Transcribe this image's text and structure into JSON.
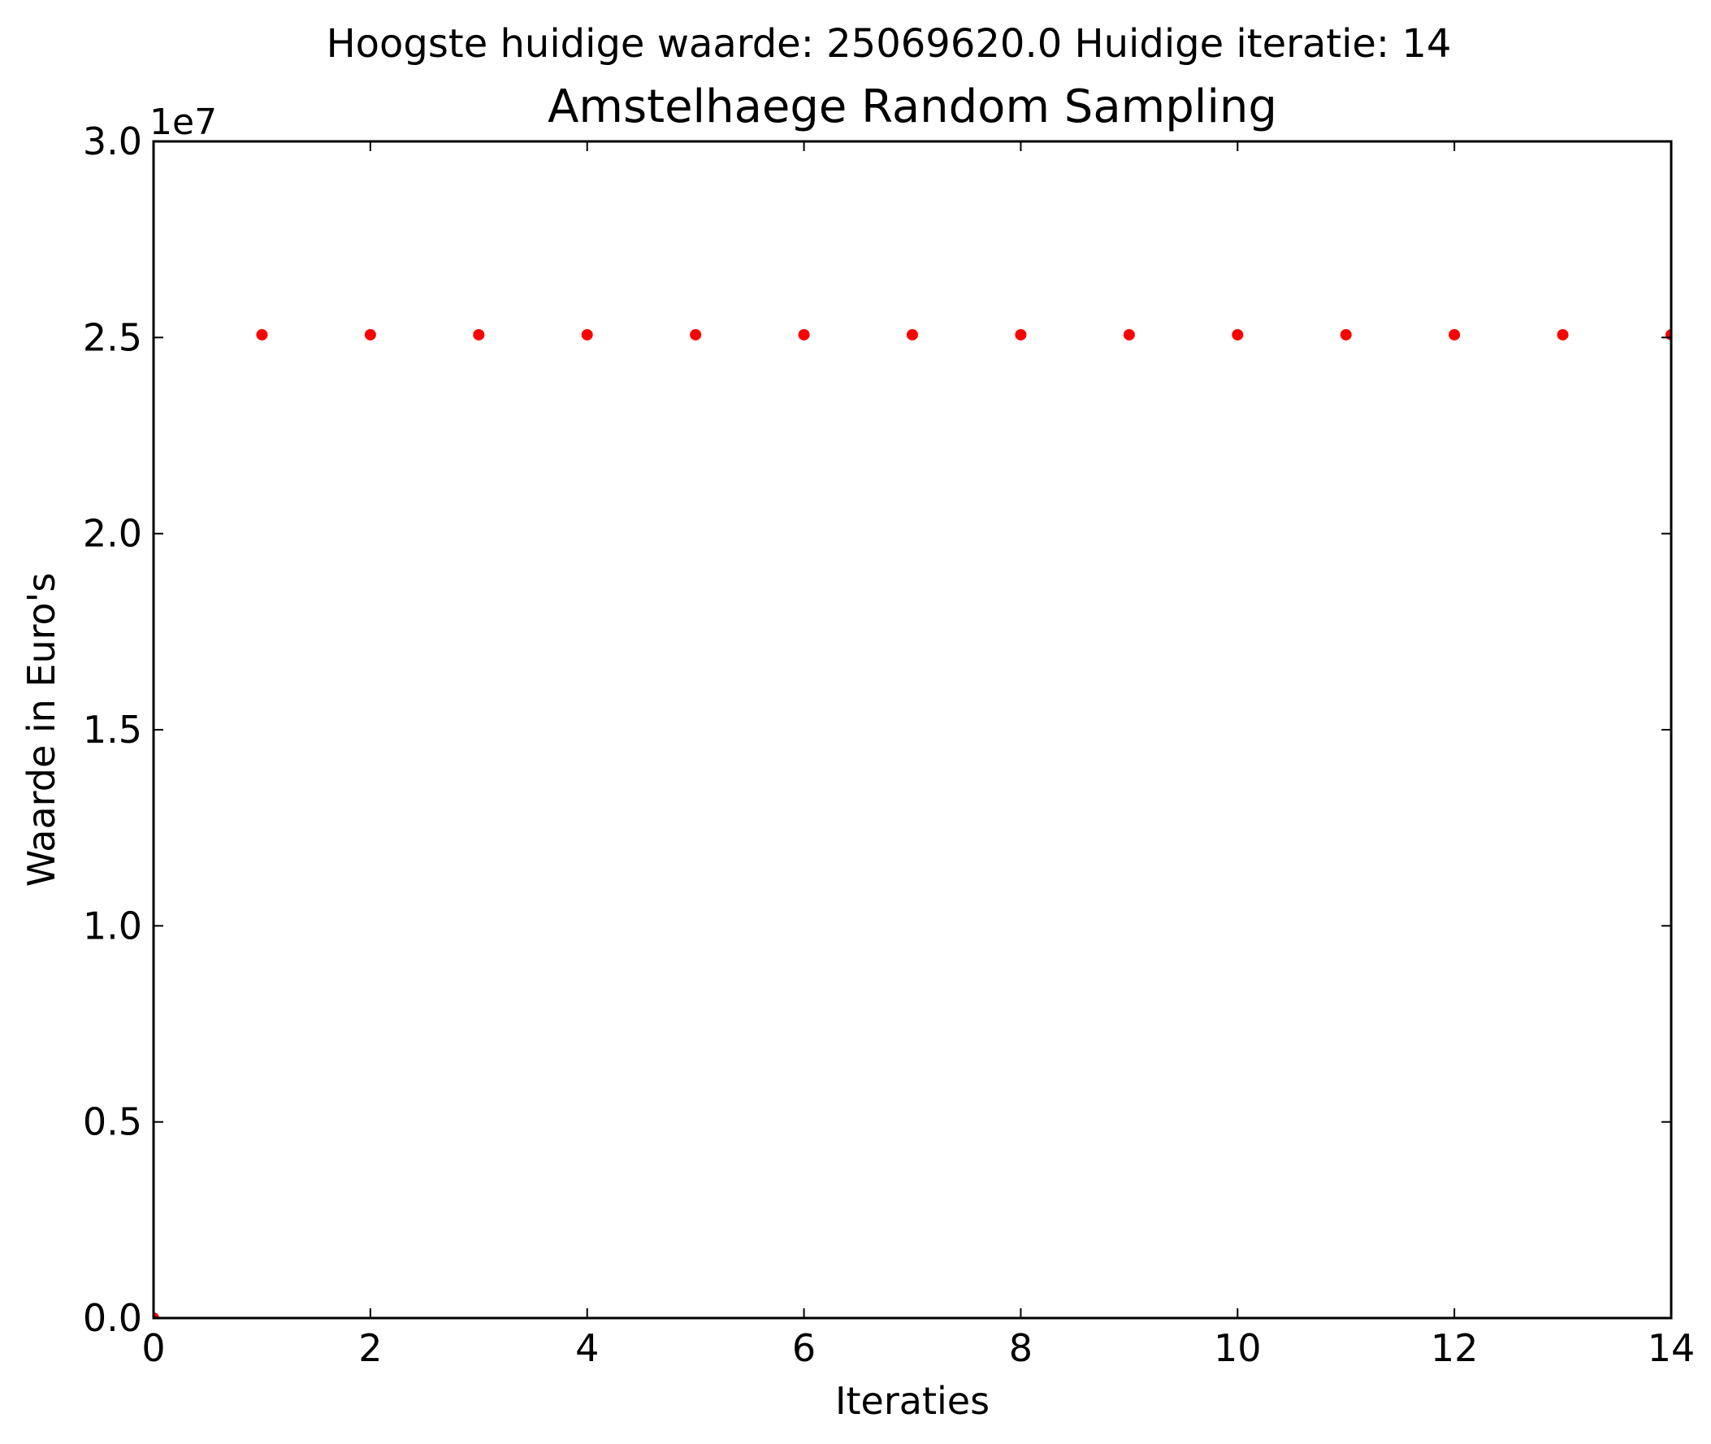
{
  "chart_data": {
    "type": "scatter",
    "suptitle": "Hoogste huidige waarde: 25069620.0 Huidige iteratie: 14",
    "title": "Amstelhaege Random Sampling",
    "xlabel": "Iteraties",
    "ylabel": "Waarde in Euro's",
    "y_offset_label": "1e7",
    "xlim": [
      0,
      14
    ],
    "ylim": [
      0,
      30000000
    ],
    "x_ticks": [
      0,
      2,
      4,
      6,
      8,
      10,
      12,
      14
    ],
    "x_tick_labels": [
      "0",
      "2",
      "4",
      "6",
      "8",
      "10",
      "12",
      "14"
    ],
    "y_ticks": [
      0,
      5000000,
      10000000,
      15000000,
      20000000,
      25000000,
      30000000
    ],
    "y_tick_labels": [
      "0.0",
      "0.5",
      "1.0",
      "1.5",
      "2.0",
      "2.5",
      "3.0"
    ],
    "grid": false,
    "marker_color": "#ff0000",
    "series": [
      {
        "x": [
          0,
          1,
          2,
          3,
          4,
          5,
          6,
          7,
          8,
          9,
          10,
          11,
          12,
          13,
          14
        ],
        "y": [
          0,
          25069620,
          25069620,
          25069620,
          25069620,
          25069620,
          25069620,
          25069620,
          25069620,
          25069620,
          25069620,
          25069620,
          25069620,
          25069620,
          25069620
        ]
      }
    ]
  }
}
